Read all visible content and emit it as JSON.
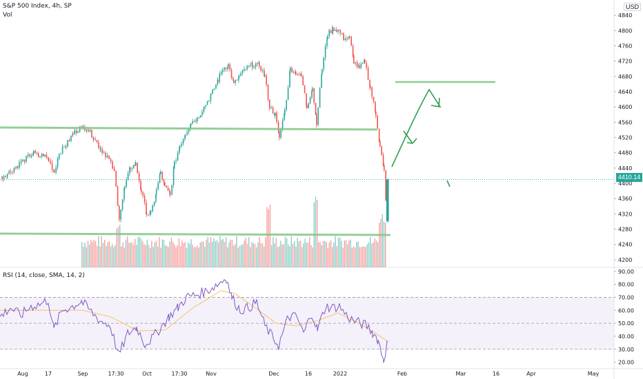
{
  "header": {
    "title": "S&P 500 Index, 4h, SP",
    "volume_label": "Vol",
    "currency": "USD",
    "last_price": "4410.14"
  },
  "rsi_panel": {
    "label": "RSI (14, close, SMA, 14, 2)"
  },
  "colors": {
    "up": "#26a69a",
    "down": "#ef5350",
    "drawing": "#4caf50",
    "rsi_line": "#7e57c2",
    "rsi_ma": "#f5c26b",
    "rsi_band": "#ede7f6"
  },
  "chart_data": [
    {
      "type": "candlestick",
      "title": "S&P 500 Index, 4h, SP",
      "x_tick_labels": [
        "Aug",
        "17",
        "Sep",
        "17:30",
        "Oct",
        "17:30",
        "Nov",
        "Dec",
        "16",
        "2022",
        "Feb",
        "Mar",
        "16",
        "Apr",
        "May"
      ],
      "y_tick_labels": [
        4200,
        4240,
        4280,
        4320,
        4360,
        4400,
        4440,
        4480,
        4520,
        4560,
        4600,
        4640,
        4680,
        4720,
        4760,
        4800,
        4840
      ],
      "ylim": [
        4180,
        4880
      ],
      "series": [
        {
          "name": "S&P 500 Index",
          "close_path": [
            [
              0,
              4415
            ],
            [
              10,
              4425
            ],
            [
              20,
              4440
            ],
            [
              30,
              4455
            ],
            [
              40,
              4470
            ],
            [
              48,
              4480
            ],
            [
              55,
              4470
            ],
            [
              62,
              4475
            ],
            [
              70,
              4460
            ],
            [
              78,
              4430
            ],
            [
              85,
              4480
            ],
            [
              95,
              4500
            ],
            [
              105,
              4530
            ],
            [
              115,
              4545
            ],
            [
              125,
              4545
            ],
            [
              135,
              4520
            ],
            [
              145,
              4490
            ],
            [
              155,
              4470
            ],
            [
              165,
              4430
            ],
            [
              172,
              4310
            ],
            [
              180,
              4390
            ],
            [
              188,
              4440
            ],
            [
              196,
              4450
            ],
            [
              204,
              4380
            ],
            [
              212,
              4320
            ],
            [
              218,
              4320
            ],
            [
              226,
              4380
            ],
            [
              232,
              4430
            ],
            [
              238,
              4390
            ],
            [
              246,
              4370
            ],
            [
              252,
              4450
            ],
            [
              260,
              4500
            ],
            [
              268,
              4530
            ],
            [
              276,
              4560
            ],
            [
              285,
              4570
            ],
            [
              295,
              4600
            ],
            [
              305,
              4630
            ],
            [
              315,
              4670
            ],
            [
              322,
              4700
            ],
            [
              330,
              4710
            ],
            [
              338,
              4660
            ],
            [
              346,
              4680
            ],
            [
              355,
              4700
            ],
            [
              365,
              4710
            ],
            [
              375,
              4710
            ],
            [
              383,
              4680
            ],
            [
              390,
              4600
            ],
            [
              398,
              4580
            ],
            [
              404,
              4520
            ],
            [
              412,
              4590
            ],
            [
              420,
              4700
            ],
            [
              428,
              4690
            ],
            [
              436,
              4680
            ],
            [
              444,
              4600
            ],
            [
              452,
              4650
            ],
            [
              458,
              4560
            ],
            [
              466,
              4700
            ],
            [
              474,
              4790
            ],
            [
              482,
              4805
            ],
            [
              490,
              4800
            ],
            [
              498,
              4780
            ],
            [
              506,
              4780
            ],
            [
              512,
              4720
            ],
            [
              520,
              4700
            ],
            [
              528,
              4720
            ],
            [
              536,
              4650
            ],
            [
              544,
              4580
            ],
            [
              550,
              4500
            ],
            [
              556,
              4430
            ],
            [
              560,
              4300
            ],
            [
              562,
              4410
            ]
          ]
        }
      ],
      "volume_visible": true
    },
    {
      "type": "line",
      "title": "RSI (14, close, SMA, 14, 2)",
      "y_tick_labels": [
        20,
        30,
        40,
        50,
        60,
        70,
        80,
        90
      ],
      "ylim": [
        15,
        92
      ],
      "bands": [
        30,
        50,
        70
      ],
      "series": [
        {
          "name": "RSI",
          "values": [
            [
              0,
              55
            ],
            [
              15,
              62
            ],
            [
              30,
              56
            ],
            [
              45,
              63
            ],
            [
              60,
              65
            ],
            [
              70,
              68
            ],
            [
              78,
              45
            ],
            [
              90,
              60
            ],
            [
              105,
              63
            ],
            [
              118,
              67
            ],
            [
              130,
              60
            ],
            [
              145,
              52
            ],
            [
              160,
              48
            ],
            [
              172,
              25
            ],
            [
              185,
              42
            ],
            [
              198,
              47
            ],
            [
              210,
              34
            ],
            [
              220,
              38
            ],
            [
              232,
              46
            ],
            [
              245,
              55
            ],
            [
              258,
              62
            ],
            [
              270,
              70
            ],
            [
              285,
              72
            ],
            [
              300,
              75
            ],
            [
              315,
              80
            ],
            [
              328,
              85
            ],
            [
              336,
              70
            ],
            [
              348,
              60
            ],
            [
              360,
              62
            ],
            [
              372,
              66
            ],
            [
              384,
              48
            ],
            [
              394,
              40
            ],
            [
              404,
              33
            ],
            [
              418,
              55
            ],
            [
              430,
              55
            ],
            [
              440,
              42
            ],
            [
              452,
              58
            ],
            [
              460,
              45
            ],
            [
              472,
              63
            ],
            [
              482,
              62
            ],
            [
              492,
              63
            ],
            [
              502,
              56
            ],
            [
              512,
              52
            ],
            [
              522,
              50
            ],
            [
              532,
              48
            ],
            [
              540,
              43
            ],
            [
              548,
              37
            ],
            [
              556,
              22
            ],
            [
              562,
              36
            ]
          ]
        },
        {
          "name": "RSI SMA",
          "values": [
            [
              0,
              60
            ],
            [
              40,
              60
            ],
            [
              80,
              60
            ],
            [
              120,
              60
            ],
            [
              160,
              55
            ],
            [
              200,
              44
            ],
            [
              240,
              45
            ],
            [
              280,
              62
            ],
            [
              320,
              75
            ],
            [
              340,
              73
            ],
            [
              370,
              62
            ],
            [
              400,
              50
            ],
            [
              430,
              48
            ],
            [
              460,
              52
            ],
            [
              490,
              58
            ],
            [
              520,
              50
            ],
            [
              545,
              42
            ],
            [
              562,
              36
            ]
          ]
        }
      ]
    }
  ]
}
